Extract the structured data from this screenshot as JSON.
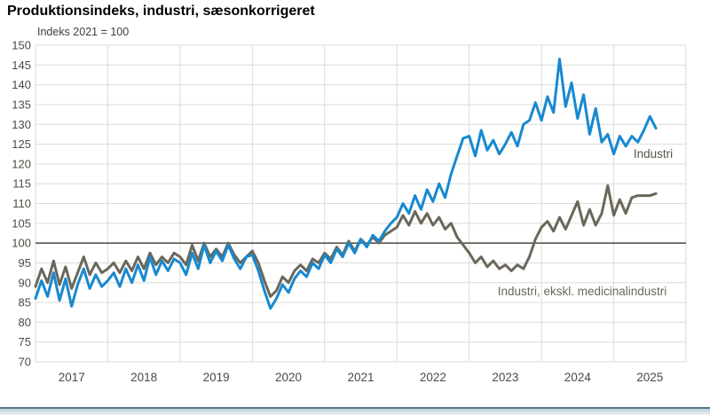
{
  "header": {
    "title": "Produktionsindeks, industri, sæsonkorrigeret",
    "subtitle": "Indeks 2021 = 100"
  },
  "chart_data": {
    "type": "line",
    "title": "Produktionsindeks, industri, sæsonkorrigeret",
    "subtitle": "Indeks 2021 = 100",
    "frequency": "monthly",
    "x_start": "2017-01",
    "x_end": "2025-08",
    "x_tick_labels": [
      "2017",
      "2018",
      "2019",
      "2020",
      "2021",
      "2022",
      "2023",
      "2024",
      "2025"
    ],
    "ylim": [
      70,
      150
    ],
    "y_tick_step": 5,
    "grid": true,
    "reference_line_y": 100,
    "legend_position": "inline-labels",
    "series": [
      {
        "name": "Industri, ekskl. medicinalindustri",
        "color": "#6a675a",
        "label_color": "#6a675a",
        "values": [
          89,
          93.5,
          90,
          95.5,
          89.5,
          94,
          88.5,
          92.5,
          96.5,
          92,
          95,
          92.5,
          93.5,
          95,
          92.5,
          95.5,
          93,
          96.5,
          93.5,
          97.5,
          94.5,
          96.5,
          95,
          97.5,
          96.5,
          94.5,
          99.5,
          95.5,
          100,
          96.5,
          98.5,
          96.5,
          100,
          97,
          95,
          96.5,
          98,
          95,
          90.5,
          86.5,
          88,
          91.5,
          90,
          93,
          94.5,
          93,
          96,
          95,
          97.5,
          96,
          99,
          97,
          100.5,
          98,
          101,
          99.5,
          101.5,
          100,
          102,
          103,
          104,
          107,
          104.5,
          108,
          105,
          107.5,
          104.5,
          106.5,
          103.5,
          105,
          101.5,
          99.5,
          97.5,
          95,
          96.5,
          94,
          95.5,
          93.5,
          94.5,
          93,
          94.5,
          93.5,
          96.5,
          101,
          104,
          105.5,
          103,
          106.5,
          103.5,
          107,
          110.5,
          104.5,
          108.5,
          104.5,
          107.5,
          114.5,
          107,
          111,
          107.5,
          111.5,
          112,
          112,
          112,
          112.5
        ]
      },
      {
        "name": "Industri",
        "color": "#1789d0",
        "label_color": "#55534b",
        "values": [
          86,
          90.5,
          86.5,
          92.5,
          85.5,
          91,
          84,
          89.5,
          93.5,
          88.5,
          92,
          89,
          90.5,
          92.5,
          89,
          93.5,
          90,
          94.5,
          90.5,
          96.5,
          92,
          95.5,
          93,
          96,
          95,
          92,
          97.5,
          93.5,
          99.5,
          95,
          98,
          95.5,
          99.5,
          96,
          93.5,
          96.5,
          97,
          93,
          88,
          83.5,
          86,
          89.5,
          87.5,
          91,
          93,
          91.5,
          95,
          93.5,
          97,
          95,
          98.5,
          96.5,
          100,
          97.5,
          101,
          99,
          102,
          100.5,
          103,
          105,
          106.5,
          110,
          107.5,
          112,
          108.5,
          113.5,
          110.5,
          115,
          111.5,
          117.5,
          122,
          126.5,
          127,
          122,
          128.5,
          123.5,
          126,
          122.5,
          125,
          128,
          124.5,
          130,
          131,
          135.5,
          131,
          137,
          133,
          146.5,
          134.5,
          140.5,
          131.5,
          137.5,
          127.5,
          134,
          125.5,
          127.5,
          122.5,
          127,
          124.5,
          127,
          125.5,
          128.5,
          132,
          129
        ]
      }
    ]
  },
  "colors": {
    "background": "#ffffff",
    "gridline": "#d9ddd6",
    "reference_line": "#4a483e",
    "tick_label": "#4c4a42",
    "title": "#000000",
    "footer_line": "#54788c",
    "footer_band_top": "#bccfd9",
    "footer_band_bottom": "#eef3f6"
  }
}
